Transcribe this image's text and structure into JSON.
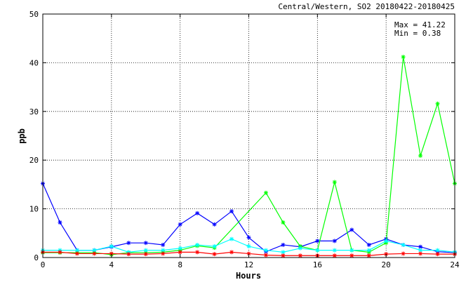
{
  "chart_data": {
    "type": "line",
    "title": "Central/Western, SO2 20180422-20180425",
    "xlabel": "Hours",
    "ylabel": "ppb",
    "xlim": [
      0,
      24
    ],
    "ylim": [
      0,
      50
    ],
    "x_ticks": [
      0,
      4,
      8,
      12,
      16,
      20,
      24
    ],
    "y_ticks": [
      0,
      10,
      20,
      30,
      40,
      50
    ],
    "grid": true,
    "stats": {
      "max_label": "Max = 41.22",
      "min_label": "Min =  0.38"
    },
    "x": [
      0,
      1,
      2,
      3,
      4,
      5,
      6,
      7,
      8,
      9,
      10,
      11,
      12,
      13,
      14,
      15,
      16,
      17,
      18,
      19,
      20,
      21,
      22,
      23,
      24
    ],
    "series": [
      {
        "color": "#0000ff",
        "values": [
          15.2,
          7.2,
          1.5,
          1.5,
          2.2,
          3.0,
          3.0,
          2.6,
          6.8,
          9.1,
          6.8,
          9.5,
          4.1,
          1.2,
          2.6,
          2.2,
          3.4,
          3.4,
          5.7,
          2.6,
          3.8,
          2.6,
          2.2,
          1.2,
          1.0
        ]
      },
      {
        "color": "#00ff00",
        "values": [
          1.0,
          1.0,
          1.0,
          1.0,
          0.6,
          1.0,
          1.0,
          1.1,
          1.5,
          2.4,
          2.0,
          null,
          null,
          13.3,
          7.2,
          2.3,
          1.5,
          15.5,
          1.5,
          1.1,
          3.0,
          41.2,
          20.9,
          31.6,
          15.2
        ]
      },
      {
        "color": "#00ffff",
        "values": [
          1.5,
          1.5,
          1.5,
          1.5,
          2.3,
          1.1,
          1.5,
          1.5,
          1.9,
          2.6,
          2.3,
          3.8,
          2.3,
          1.5,
          1.1,
          1.9,
          1.5,
          1.5,
          1.5,
          1.5,
          3.4,
          2.6,
          1.5,
          1.5,
          1.1
        ]
      },
      {
        "color": "#ff0000",
        "values": [
          1.1,
          1.1,
          0.8,
          0.8,
          0.8,
          0.7,
          0.7,
          0.8,
          1.1,
          1.1,
          0.7,
          1.1,
          0.8,
          0.5,
          0.4,
          0.4,
          0.4,
          0.4,
          0.4,
          0.4,
          0.7,
          0.8,
          0.8,
          0.7,
          0.7
        ]
      }
    ]
  }
}
